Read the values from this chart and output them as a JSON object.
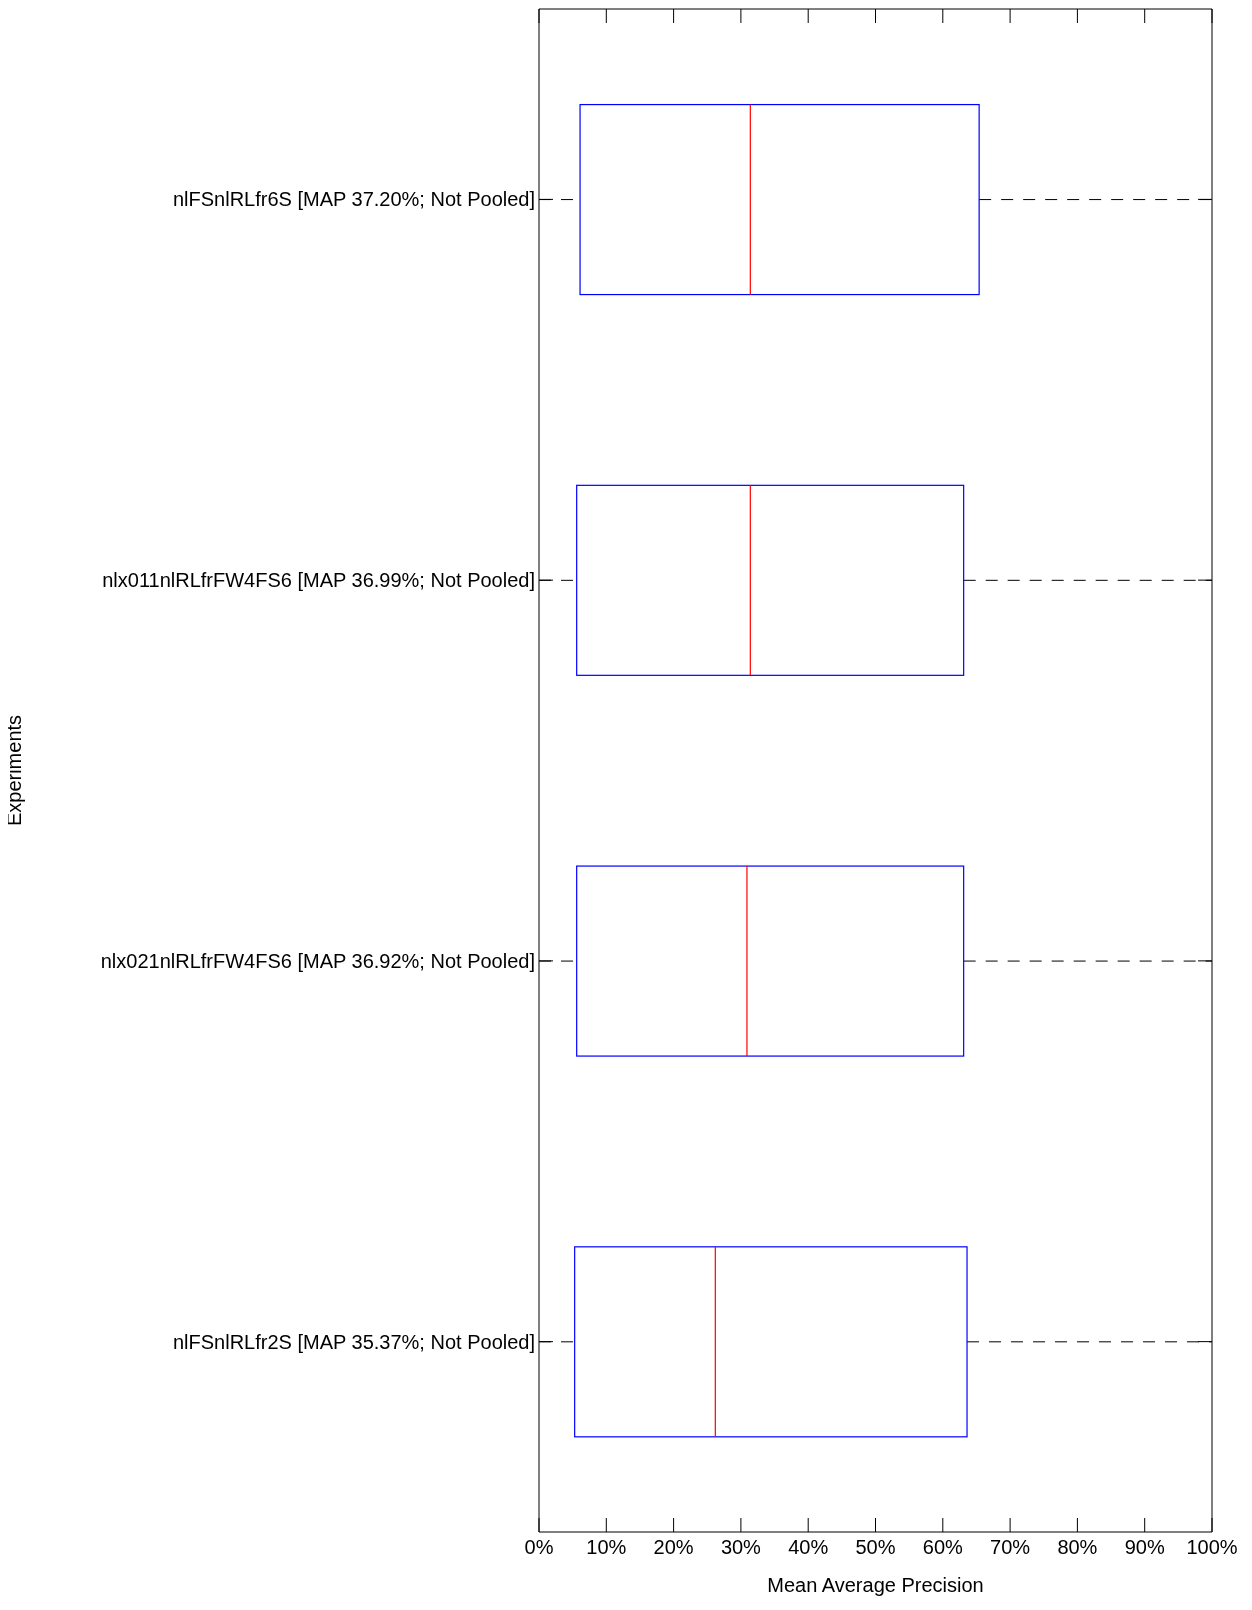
{
  "chart_data": {
    "type": "box",
    "orientation": "horizontal",
    "xlabel": "Mean Average Precision",
    "ylabel": "Experiments",
    "categories": [
      "nlFSnlRLfr6S [MAP 37.20%; Not Pooled]",
      "nlx011nlRLfrFW4FS6 [MAP 36.99%; Not Pooled]",
      "nlx021nlRLfrFW4FS6 [MAP 36.92%; Not Pooled]",
      "nlFSnlRLfr2S [MAP 35.37%; Not Pooled]"
    ],
    "boxes": [
      {
        "low": 0,
        "q1": 6.1,
        "median": 31.4,
        "q3": 65.4,
        "high": 100
      },
      {
        "low": 0,
        "q1": 5.6,
        "median": 31.4,
        "q3": 63.1,
        "high": 100
      },
      {
        "low": 0,
        "q1": 5.6,
        "median": 30.9,
        "q3": 63.1,
        "high": 100
      },
      {
        "low": 0,
        "q1": 5.3,
        "median": 26.2,
        "q3": 63.6,
        "high": 100
      }
    ],
    "color": "#0000ff",
    "grid": false,
    "legend": false,
    "xlim": [
      0,
      100
    ],
    "xticks": [
      {
        "value": 0,
        "label": "0%"
      },
      {
        "value": 10,
        "label": "10%"
      },
      {
        "value": 20,
        "label": "20%"
      },
      {
        "value": 30,
        "label": "30%"
      },
      {
        "value": 40,
        "label": "40%"
      },
      {
        "value": 50,
        "label": "50%"
      },
      {
        "value": 60,
        "label": "60%"
      },
      {
        "value": 70,
        "label": "70%"
      },
      {
        "value": 80,
        "label": "80%"
      },
      {
        "value": 90,
        "label": "90%"
      },
      {
        "value": 100,
        "label": "100%"
      }
    ]
  }
}
